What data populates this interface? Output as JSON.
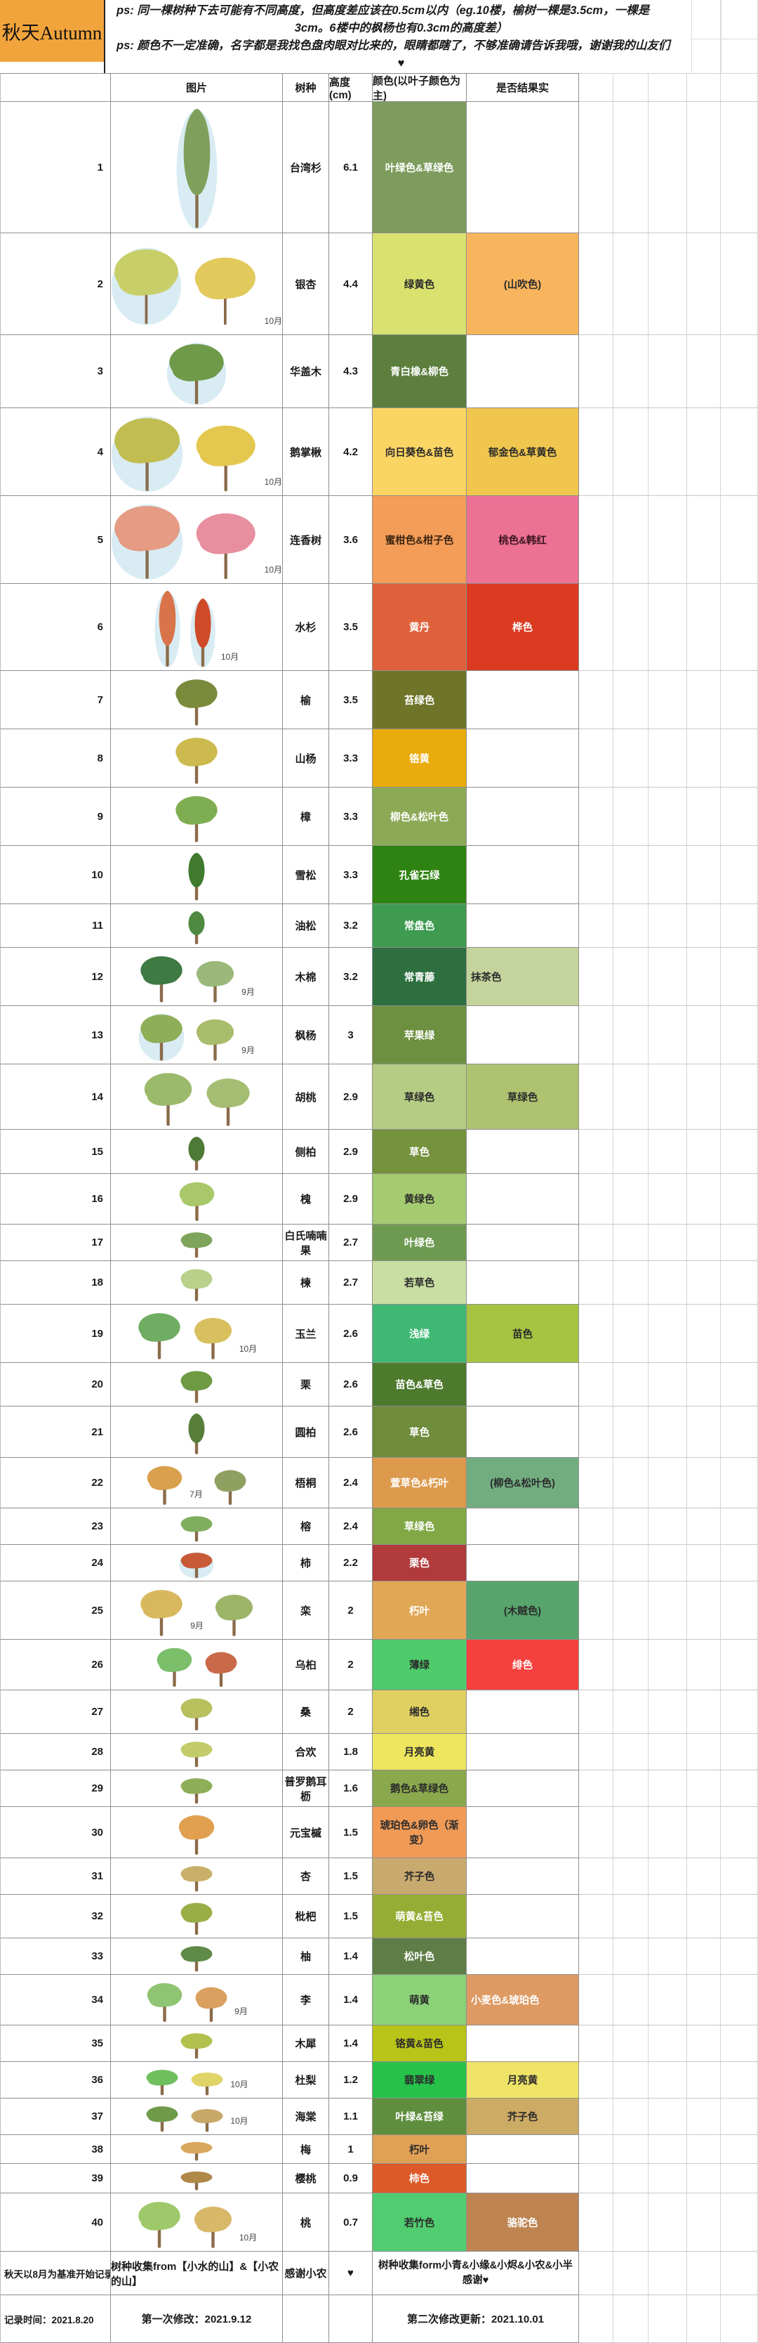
{
  "header": {
    "title": "秋天Autumn",
    "title_bg": "#F2A43C",
    "notes": [
      "ps: 同一棵树种下去可能有不同高度，但高度差应该在0.5cm以内（eg.10楼，榆树一棵是3.5cm，一棵是",
      "3cm。6楼中的枫杨也有0.3cm的高度差）",
      "ps: 颜色不一定准确，名字都是我找色盘肉眼对比来的，眼睛都瞎了，不够准确请告诉我哦，谢谢我的山友们",
      "♥"
    ]
  },
  "table": {
    "columns": [
      "",
      "图片",
      "树种",
      "高度 (cm)",
      "颜色(以叶子颜色为主)",
      "是否结果实"
    ]
  },
  "rows": [
    {
      "num": "1",
      "name": "台湾杉",
      "height": "6.1",
      "h": 187,
      "leaf": {
        "text": "叶绿色&草绿色",
        "bg": "#7D9C5D",
        "fg": "#FFFFFF"
      },
      "fruit": null,
      "month": null,
      "month_at": 0,
      "trees": [
        {
          "s": "c",
          "c": "#7FA05C",
          "b": true
        }
      ]
    },
    {
      "num": "2",
      "name": "银杏",
      "height": "4.4",
      "h": 145,
      "leaf": {
        "text": "绿黄色",
        "bg": "#D9E26E",
        "fg": "#2B2B2B"
      },
      "fruit": {
        "text": "(山吹色)",
        "bg": "#F8B55E",
        "fg": "#2B2B2B"
      },
      "month": "10月",
      "month_at": 1,
      "trees": [
        {
          "s": "r",
          "c": "#C9CF68",
          "b": true
        },
        {
          "s": "r",
          "c": "#E2C95C"
        }
      ]
    },
    {
      "num": "3",
      "name": "华盖木",
      "height": "4.3",
      "h": 104,
      "leaf": {
        "text": "青白橡&柳色",
        "bg": "#5C7F3E",
        "fg": "#FFFFFF"
      },
      "fruit": null,
      "month": null,
      "month_at": 0,
      "trees": [
        {
          "s": "r",
          "c": "#6F9A4A",
          "b": true
        }
      ]
    },
    {
      "num": "4",
      "name": "鹅掌楸",
      "height": "4.2",
      "h": 125,
      "leaf": {
        "text": "向日葵色&苗色",
        "bg": "#FBD563",
        "fg": "#2B2B2B"
      },
      "fruit": {
        "text": "郁金色&草黄色",
        "bg": "#F0C64E",
        "fg": "#2B2B2B"
      },
      "month": "10月",
      "month_at": 1,
      "trees": [
        {
          "s": "r",
          "c": "#C2BD50",
          "b": true
        },
        {
          "s": "r",
          "c": "#E4C74E"
        }
      ]
    },
    {
      "num": "5",
      "name": "连香树",
      "height": "3.6",
      "h": 125,
      "leaf": {
        "text": "蜜柑色&柑子色",
        "bg": "#F49D58",
        "fg": "#3A2410"
      },
      "fruit": {
        "text": "桃色&韩红",
        "bg": "#EC7195",
        "fg": "#3A1420"
      },
      "month": "10月",
      "month_at": 1,
      "trees": [
        {
          "s": "r",
          "c": "#E59B84",
          "b": true
        },
        {
          "s": "r",
          "c": "#E78F9E"
        }
      ]
    },
    {
      "num": "6",
      "name": "水杉",
      "height": "3.5",
      "h": 124,
      "leaf": {
        "text": "黄丹",
        "bg": "#DF613B",
        "fg": "#FFFFFF"
      },
      "fruit": {
        "text": "桦色",
        "bg": "#D93A20",
        "fg": "#FFFFFF"
      },
      "month": "10月",
      "month_at": 1,
      "trees": [
        {
          "s": "c",
          "c": "#D9744A",
          "b": true
        },
        {
          "s": "c",
          "c": "#CE4A28",
          "b": true
        }
      ]
    },
    {
      "num": "7",
      "name": "榆",
      "height": "3.5",
      "h": 83,
      "leaf": {
        "text": "苔绿色",
        "bg": "#6E7528",
        "fg": "#FFFFFF"
      },
      "fruit": null,
      "month": null,
      "month_at": 0,
      "trees": [
        {
          "s": "r",
          "c": "#7A8A3C"
        }
      ]
    },
    {
      "num": "8",
      "name": "山杨",
      "height": "3.3",
      "h": 83,
      "leaf": {
        "text": "铬黄",
        "bg": "#E9AA0B",
        "fg": "#FFFFFF"
      },
      "fruit": null,
      "month": null,
      "month_at": 0,
      "trees": [
        {
          "s": "r",
          "c": "#CCBA4E"
        }
      ]
    },
    {
      "num": "9",
      "name": "樟",
      "height": "3.3",
      "h": 83,
      "leaf": {
        "text": "柳色&松叶色",
        "bg": "#8CAA55",
        "fg": "#FFFFFF"
      },
      "fruit": null,
      "month": null,
      "month_at": 0,
      "trees": [
        {
          "s": "r",
          "c": "#7FAE52"
        }
      ]
    },
    {
      "num": "10",
      "name": "雪松",
      "height": "3.3",
      "h": 83,
      "leaf": {
        "text": "孔雀石绿",
        "bg": "#2E8312",
        "fg": "#FFFFFF"
      },
      "fruit": null,
      "month": null,
      "month_at": 0,
      "trees": [
        {
          "s": "c",
          "c": "#3F7A2E"
        }
      ]
    },
    {
      "num": "11",
      "name": "油松",
      "height": "3.2",
      "h": 62,
      "leaf": {
        "text": "常盘色",
        "bg": "#3E9B50",
        "fg": "#FFFFFF"
      },
      "fruit": null,
      "month": null,
      "month_at": 0,
      "trees": [
        {
          "s": "c",
          "c": "#4E8A3F"
        }
      ]
    },
    {
      "num": "12",
      "name": "木棉",
      "height": "3.2",
      "h": 83,
      "leaf": {
        "text": "常青藤",
        "bg": "#2D6F3E",
        "fg": "#FFFFFF"
      },
      "fruit": {
        "text": "抹茶色",
        "bg": "#C5D49C",
        "fg": "#2B2B2B",
        "align": "left"
      },
      "month": "9月",
      "month_at": 1,
      "trees": [
        {
          "s": "r",
          "c": "#3E7A44"
        },
        {
          "s": "r",
          "c": "#9BB87B"
        }
      ]
    },
    {
      "num": "13",
      "name": "枫杨",
      "height": "3",
      "h": 83,
      "leaf": {
        "text": "苹果绿",
        "bg": "#6D9040",
        "fg": "#FFFFFF"
      },
      "fruit": null,
      "month": "9月",
      "month_at": 1,
      "trees": [
        {
          "s": "r",
          "c": "#8FAE58",
          "b": true
        },
        {
          "s": "r",
          "c": "#A9BC6B"
        }
      ]
    },
    {
      "num": "14",
      "name": "胡桃",
      "height": "2.9",
      "h": 93,
      "leaf": {
        "text": "草绿色",
        "bg": "#B5CC85",
        "fg": "#2B2B2B"
      },
      "fruit": {
        "text": "草绿色",
        "bg": "#AFC26F",
        "fg": "#2B2B2B"
      },
      "month": null,
      "month_at": 0,
      "trees": [
        {
          "s": "r",
          "c": "#9CBA6C"
        },
        {
          "s": "r",
          "c": "#A5BD73"
        }
      ]
    },
    {
      "num": "15",
      "name": "侧柏",
      "height": "2.9",
      "h": 63,
      "leaf": {
        "text": "草色",
        "bg": "#75923C",
        "fg": "#FFFFFF"
      },
      "fruit": null,
      "month": null,
      "month_at": 0,
      "trees": [
        {
          "s": "c",
          "c": "#4E7A38"
        }
      ]
    },
    {
      "num": "16",
      "name": "槐",
      "height": "2.9",
      "h": 72,
      "leaf": {
        "text": "黄绿色",
        "bg": "#A5CB70",
        "fg": "#2B2B2B"
      },
      "fruit": null,
      "month": null,
      "month_at": 0,
      "trees": [
        {
          "s": "r",
          "c": "#A8C86A"
        }
      ]
    },
    {
      "num": "17",
      "name": "白氏喃喃果",
      "height": "2.7",
      "h": 52,
      "leaf": {
        "text": "叶绿色",
        "bg": "#6D9A50",
        "fg": "#FFFFFF"
      },
      "fruit": null,
      "month": null,
      "month_at": 0,
      "trees": [
        {
          "s": "r",
          "c": "#7DA45A"
        }
      ]
    },
    {
      "num": "18",
      "name": "楝",
      "height": "2.7",
      "h": 62,
      "leaf": {
        "text": "若草色",
        "bg": "#C9DFA2",
        "fg": "#2B2B2B"
      },
      "fruit": null,
      "month": null,
      "month_at": 0,
      "trees": [
        {
          "s": "r",
          "c": "#B8D08A"
        }
      ]
    },
    {
      "num": "19",
      "name": "玉兰",
      "height": "2.6",
      "h": 83,
      "leaf": {
        "text": "浅绿",
        "bg": "#3EB873",
        "fg": "#FFFFFF"
      },
      "fruit": {
        "text": "苗色",
        "bg": "#A6C442",
        "fg": "#2B2B2B"
      },
      "month": "10月",
      "month_at": 1,
      "trees": [
        {
          "s": "r",
          "c": "#6FAE62"
        },
        {
          "s": "r",
          "c": "#D8C05E"
        }
      ]
    },
    {
      "num": "20",
      "name": "栗",
      "height": "2.6",
      "h": 62,
      "leaf": {
        "text": "苗色&草色",
        "bg": "#4E7A2E",
        "fg": "#FFFFFF"
      },
      "fruit": null,
      "month": null,
      "month_at": 0,
      "trees": [
        {
          "s": "r",
          "c": "#6F9A44"
        }
      ]
    },
    {
      "num": "21",
      "name": "圆柏",
      "height": "2.6",
      "h": 73,
      "leaf": {
        "text": "草色",
        "bg": "#6E8C3C",
        "fg": "#FFFFFF"
      },
      "fruit": null,
      "month": null,
      "month_at": 0,
      "trees": [
        {
          "s": "c",
          "c": "#587F3A"
        }
      ]
    },
    {
      "num": "22",
      "name": "梧桐",
      "height": "2.4",
      "h": 72,
      "leaf": {
        "text": "萱草色&朽叶",
        "bg": "#DD9A4C",
        "fg": "#FFFFFF"
      },
      "fruit": {
        "text": "(柳色&松叶色)",
        "bg": "#72AD80",
        "fg": "#2B2B2B"
      },
      "month": "7月",
      "month_at": 0,
      "trees": [
        {
          "s": "r",
          "c": "#D9A04E"
        },
        {
          "s": "r",
          "c": "#8FA060"
        }
      ]
    },
    {
      "num": "23",
      "name": "榕",
      "height": "2.4",
      "h": 52,
      "leaf": {
        "text": "草绿色",
        "bg": "#81A845",
        "fg": "#FFFFFF"
      },
      "fruit": null,
      "month": null,
      "month_at": 0,
      "trees": [
        {
          "s": "r",
          "c": "#7FAE5E"
        }
      ]
    },
    {
      "num": "24",
      "name": "柿",
      "height": "2.2",
      "h": 52,
      "leaf": {
        "text": "栗色",
        "bg": "#B03A3C",
        "fg": "#FFFFFF"
      },
      "fruit": null,
      "month": null,
      "month_at": 0,
      "trees": [
        {
          "s": "r",
          "c": "#C85A38",
          "b": true
        }
      ]
    },
    {
      "num": "25",
      "name": "栾",
      "height": "2",
      "h": 83,
      "leaf": {
        "text": "朽叶",
        "bg": "#E0A755",
        "fg": "#FFFFFF"
      },
      "fruit": {
        "text": "(木贼色)",
        "bg": "#57A56C",
        "fg": "#2B2B2B"
      },
      "month": "9月",
      "month_at": 0,
      "trees": [
        {
          "s": "r",
          "c": "#D8B85E"
        },
        {
          "s": "r",
          "c": "#9CB468"
        }
      ]
    },
    {
      "num": "26",
      "name": "乌桕",
      "height": "2",
      "h": 72,
      "leaf": {
        "text": "薄绿",
        "bg": "#4ECB6A",
        "fg": "#2B2B2B"
      },
      "fruit": {
        "text": "绯色",
        "bg": "#F4403E",
        "fg": "#FFFFFF"
      },
      "month": null,
      "month_at": 0,
      "trees": [
        {
          "s": "r",
          "c": "#7CBF6A"
        },
        {
          "s": "r",
          "c": "#C86A4A"
        }
      ]
    },
    {
      "num": "27",
      "name": "桑",
      "height": "2",
      "h": 62,
      "leaf": {
        "text": "缃色",
        "bg": "#E0D060",
        "fg": "#2B2B2B"
      },
      "fruit": null,
      "month": null,
      "month_at": 0,
      "trees": [
        {
          "s": "r",
          "c": "#B8C05E"
        }
      ]
    },
    {
      "num": "28",
      "name": "合欢",
      "height": "1.8",
      "h": 52,
      "leaf": {
        "text": "月亮黄",
        "bg": "#EDE65E",
        "fg": "#2B2B2B"
      },
      "fruit": null,
      "month": null,
      "month_at": 0,
      "trees": [
        {
          "s": "r",
          "c": "#C2CC6A"
        }
      ]
    },
    {
      "num": "29",
      "name": "普罗鹅耳枥",
      "height": "1.6",
      "h": 52,
      "leaf": {
        "text": "鹅色&草绿色",
        "bg": "#8AA84C",
        "fg": "#2B2B2B"
      },
      "fruit": null,
      "month": null,
      "month_at": 0,
      "trees": [
        {
          "s": "r",
          "c": "#8FAE58"
        }
      ]
    },
    {
      "num": "30",
      "name": "元宝槭",
      "height": "1.5",
      "h": 73,
      "leaf": {
        "text": "琥珀色&卵色（渐变）",
        "bg": "#F09A56",
        "fg": "#2B2B2B"
      },
      "fruit": null,
      "month": null,
      "month_at": 0,
      "trees": [
        {
          "s": "r",
          "c": "#E0A050"
        }
      ]
    },
    {
      "num": "31",
      "name": "杏",
      "height": "1.5",
      "h": 52,
      "leaf": {
        "text": "芥子色",
        "bg": "#C9AA6E",
        "fg": "#2B2B2B"
      },
      "fruit": null,
      "month": null,
      "month_at": 0,
      "trees": [
        {
          "s": "r",
          "c": "#C8B06A"
        }
      ]
    },
    {
      "num": "32",
      "name": "枇杷",
      "height": "1.5",
      "h": 62,
      "leaf": {
        "text": "萌黄&苔色",
        "bg": "#96AD35",
        "fg": "#FFFFFF"
      },
      "fruit": null,
      "month": null,
      "month_at": 0,
      "trees": [
        {
          "s": "r",
          "c": "#9AAE48"
        }
      ]
    },
    {
      "num": "33",
      "name": "柚",
      "height": "1.4",
      "h": 52,
      "leaf": {
        "text": "松叶色",
        "bg": "#5F7E47",
        "fg": "#FFFFFF"
      },
      "fruit": null,
      "month": null,
      "month_at": 0,
      "trees": [
        {
          "s": "r",
          "c": "#5F8A48"
        }
      ]
    },
    {
      "num": "34",
      "name": "李",
      "height": "1.4",
      "h": 72,
      "leaf": {
        "text": "萌黄",
        "bg": "#8BD178",
        "fg": "#2B2B2B"
      },
      "fruit": {
        "text": "小麦色&琥珀色",
        "bg": "#DD9A62",
        "fg": "#FFFFFF",
        "align": "left"
      },
      "month": "9月",
      "month_at": 1,
      "trees": [
        {
          "s": "r",
          "c": "#8FC472"
        },
        {
          "s": "r",
          "c": "#D9A060"
        }
      ]
    },
    {
      "num": "35",
      "name": "木犀",
      "height": "1.4",
      "h": 52,
      "leaf": {
        "text": "铬黄&苗色",
        "bg": "#B8C418",
        "fg": "#2B2B2B"
      },
      "fruit": null,
      "month": null,
      "month_at": 0,
      "trees": [
        {
          "s": "r",
          "c": "#B2C04E"
        }
      ]
    },
    {
      "num": "36",
      "name": "杜梨",
      "height": "1.2",
      "h": 52,
      "leaf": {
        "text": "翡翠绿",
        "bg": "#27C24A",
        "fg": "#2B2B2B"
      },
      "fruit": {
        "text": "月亮黄",
        "bg": "#F0E468",
        "fg": "#2B2B2B"
      },
      "month": "10月",
      "month_at": 1,
      "trees": [
        {
          "s": "r",
          "c": "#6FBF5E"
        },
        {
          "s": "r",
          "c": "#E0D468"
        }
      ]
    },
    {
      "num": "37",
      "name": "海棠",
      "height": "1.1",
      "h": 52,
      "leaf": {
        "text": "叶绿&苔绿",
        "bg": "#5F8E3E",
        "fg": "#FFFFFF"
      },
      "fruit": {
        "text": "芥子色",
        "bg": "#CCAB64",
        "fg": "#2B2B2B"
      },
      "month": "10月",
      "month_at": 1,
      "trees": [
        {
          "s": "r",
          "c": "#6F9A4A"
        },
        {
          "s": "r",
          "c": "#C8A868"
        }
      ]
    },
    {
      "num": "38",
      "name": "梅",
      "height": "1",
      "h": 41,
      "leaf": {
        "text": "朽叶",
        "bg": "#E0A055",
        "fg": "#2B2B2B"
      },
      "fruit": null,
      "month": null,
      "month_at": 0,
      "trees": [
        {
          "s": "r",
          "c": "#D8A860"
        }
      ]
    },
    {
      "num": "39",
      "name": "樱桃",
      "height": "0.9",
      "h": 42,
      "leaf": {
        "text": "柿色",
        "bg": "#DD5A28",
        "fg": "#FFFFFF"
      },
      "fruit": null,
      "month": null,
      "month_at": 0,
      "trees": [
        {
          "s": "r",
          "c": "#B08848"
        }
      ]
    },
    {
      "num": "40",
      "name": "桃",
      "height": "0.7",
      "h": 83,
      "leaf": {
        "text": "若竹色",
        "bg": "#52CC70",
        "fg": "#2B2B2B"
      },
      "fruit": {
        "text": "骆驼色",
        "bg": "#BD8452",
        "fg": "#FFFFFF"
      },
      "month": "10月",
      "month_at": 1,
      "trees": [
        {
          "s": "r",
          "c": "#9EC86A"
        },
        {
          "s": "r",
          "c": "#D8B868"
        }
      ]
    }
  ],
  "footer": {
    "r1": {
      "a": "秋天以8月为基准开始记录",
      "b": "树种收集from【小水的山】&【小农的山】",
      "c": "感谢小农",
      "d": "♥",
      "ef": "树种收集form小青&小缘&小烬&小农&小半",
      "ef2": "感谢♥"
    },
    "r2": {
      "a": "记录时间：2021.8.20",
      "b": "第一次修改：2021.9.12",
      "ef": "第二次修改更新：2021.10.01"
    }
  }
}
